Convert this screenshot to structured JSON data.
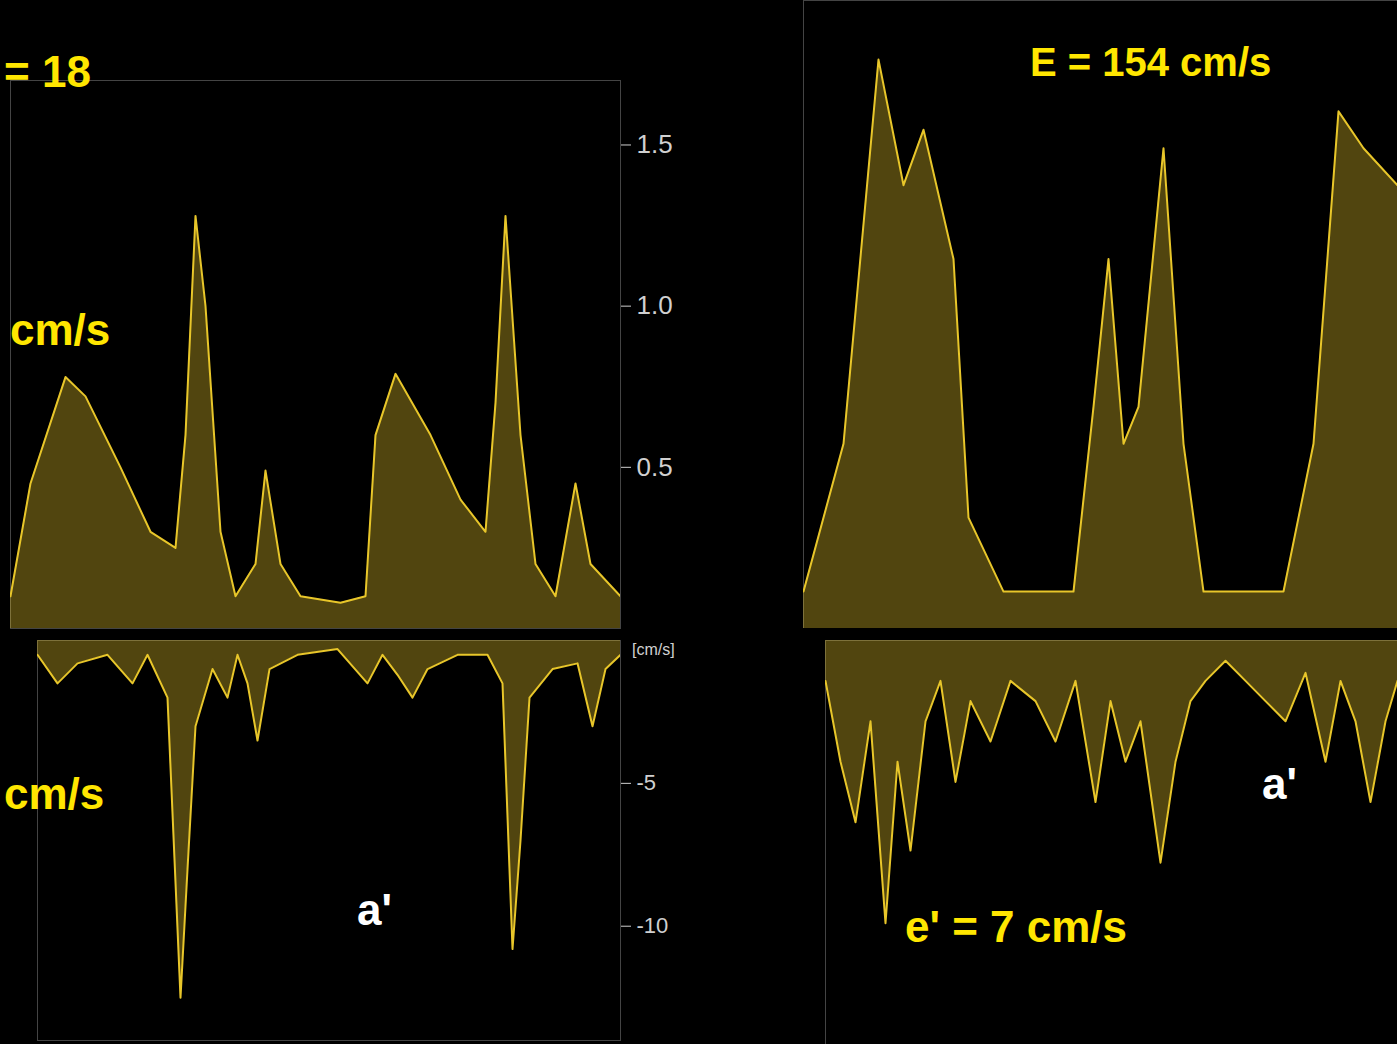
{
  "chart_data": [
    {
      "type": "area",
      "color": "#e8c62a",
      "tick_labels": "y",
      "xlim": [
        0,
        610
      ],
      "ylim": [
        0,
        1.7
      ],
      "yticks": [
        0.5,
        {
          "value": 1,
          "label": "1.0"
        },
        1.5
      ],
      "x": [
        0,
        20,
        55,
        75,
        110,
        140,
        165,
        175,
        185,
        195,
        210,
        225,
        245,
        255,
        270,
        290,
        330,
        355,
        365,
        385,
        420,
        450,
        475,
        485,
        495,
        510,
        525,
        545,
        565,
        580,
        610
      ],
      "values": [
        0.1,
        0.45,
        0.78,
        0.72,
        0.5,
        0.3,
        0.25,
        0.6,
        1.28,
        1.0,
        0.3,
        0.1,
        0.2,
        0.49,
        0.2,
        0.1,
        0.08,
        0.1,
        0.6,
        0.79,
        0.6,
        0.4,
        0.3,
        0.7,
        1.28,
        0.6,
        0.2,
        0.1,
        0.45,
        0.2,
        0.1
      ],
      "annotations": [
        {
          "text": "= 18",
          "color": "#ffe600"
        },
        {
          "text": "cm/s",
          "color": "#ffe600"
        }
      ]
    },
    {
      "type": "area",
      "color": "#e8c62a",
      "tick_labels": false,
      "xlim": [
        0,
        594
      ],
      "ylim": [
        0,
        1.7
      ],
      "x": [
        0,
        40,
        75,
        100,
        120,
        150,
        165,
        200,
        270,
        290,
        305,
        320,
        335,
        360,
        380,
        400,
        480,
        510,
        535,
        560,
        594
      ],
      "values": [
        0.1,
        0.5,
        1.54,
        1.2,
        1.35,
        1.0,
        0.3,
        0.1,
        0.1,
        0.6,
        1.0,
        0.5,
        0.6,
        1.3,
        0.5,
        0.1,
        0.1,
        0.5,
        1.4,
        1.3,
        1.2
      ],
      "annotations": [
        {
          "text": "E = 154 cm/s",
          "color": "#ffe600"
        }
      ]
    },
    {
      "type": "area",
      "color": "#e8c62a",
      "tick_labels": "y",
      "ylabel": "[cm/s]",
      "xlim": [
        0,
        583
      ],
      "ylim": [
        -14,
        0
      ],
      "yticks": [
        -5,
        -10
      ],
      "x": [
        0,
        20,
        40,
        70,
        95,
        110,
        130,
        143,
        150,
        158,
        175,
        190,
        200,
        210,
        220,
        232,
        260,
        300,
        330,
        345,
        360,
        375,
        390,
        420,
        450,
        465,
        475,
        483,
        492,
        515,
        540,
        555,
        568,
        583
      ],
      "values": [
        -0.5,
        -1.5,
        -0.8,
        -0.5,
        -1.5,
        -0.5,
        -2,
        -12.5,
        -8,
        -3,
        -1,
        -2,
        -0.5,
        -1.5,
        -3.5,
        -1,
        -0.5,
        -0.3,
        -1.5,
        -0.5,
        -1.2,
        -2,
        -1,
        -0.5,
        -0.5,
        -1.5,
        -10.8,
        -7,
        -2,
        -1,
        -0.8,
        -3,
        -1,
        -0.5
      ],
      "annotations": [
        {
          "text": "cm/s",
          "color": "#ffe600"
        },
        {
          "text": "a'",
          "color": "#ffffff"
        }
      ]
    },
    {
      "type": "area",
      "color": "#e8c62a",
      "tick_labels": false,
      "xlim": [
        0,
        572
      ],
      "ylim": [
        -10,
        0
      ],
      "x": [
        0,
        15,
        30,
        45,
        60,
        72,
        85,
        100,
        115,
        130,
        145,
        165,
        185,
        210,
        230,
        250,
        270,
        285,
        300,
        315,
        335,
        350,
        365,
        380,
        400,
        420,
        440,
        460,
        480,
        500,
        515,
        530,
        545,
        560,
        572
      ],
      "values": [
        -1,
        -3,
        -4.5,
        -2,
        -7,
        -3,
        -5.2,
        -2,
        -1,
        -3.5,
        -1.5,
        -2.5,
        -1,
        -1.5,
        -2.5,
        -1,
        -4,
        -1.5,
        -3,
        -2,
        -5.5,
        -3,
        -1.5,
        -1,
        -0.5,
        -1,
        -1.5,
        -2,
        -0.8,
        -3,
        -1,
        -2,
        -4,
        -2,
        -1
      ],
      "annotations": [
        {
          "text": "a'",
          "color": "#ffffff"
        },
        {
          "text": "e' = 7 cm/s",
          "color": "#ffe600"
        }
      ]
    }
  ]
}
